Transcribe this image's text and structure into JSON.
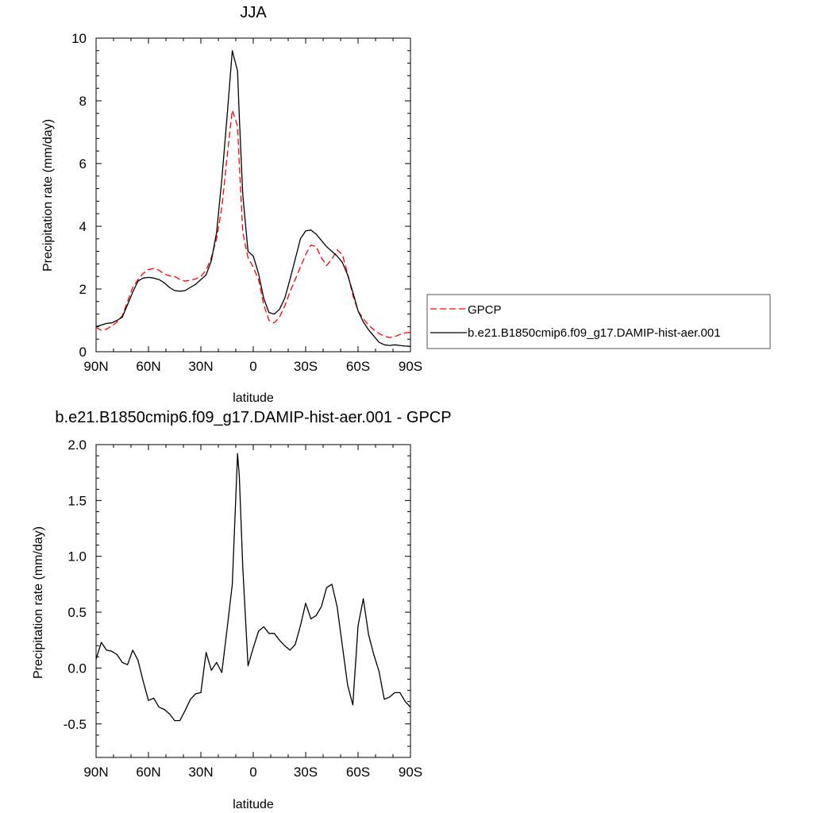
{
  "chart_data": [
    {
      "type": "line",
      "title": "JJA",
      "xlabel": "latitude",
      "ylabel": "Precipitation rate (mm/day)",
      "xlim": [
        90,
        -90
      ],
      "ylim": [
        0,
        10
      ],
      "x_ticks": [
        90,
        60,
        30,
        0,
        -30,
        -60,
        -90
      ],
      "x_tick_labels": [
        "90N",
        "60N",
        "30N",
        "0",
        "30S",
        "60S",
        "90S"
      ],
      "y_ticks": [
        0,
        2,
        4,
        6,
        8,
        10
      ],
      "y_tick_labels": [
        "0",
        "2",
        "4",
        "6",
        "8",
        "10"
      ],
      "grid": false,
      "legend_position": "right",
      "series": [
        {
          "name": "GPCP",
          "color": "#ff0000",
          "dash": "dashed",
          "x": [
            90,
            87,
            84,
            81,
            78,
            75,
            72,
            69,
            66,
            63,
            60,
            57,
            54,
            51,
            48,
            45,
            42,
            39,
            36,
            33,
            30,
            27,
            24,
            21,
            18,
            15,
            12,
            9,
            8,
            6,
            3,
            0,
            -3,
            -6,
            -9,
            -12,
            -15,
            -18,
            -21,
            -24,
            -27,
            -30,
            -33,
            -36,
            -39,
            -42,
            -45,
            -48,
            -51,
            -54,
            -57,
            -60,
            -63,
            -66,
            -69,
            -72,
            -75,
            -78,
            -81,
            -84,
            -87,
            -90
          ],
          "y": [
            0.78,
            0.68,
            0.72,
            0.82,
            0.95,
            1.15,
            1.6,
            2.05,
            2.3,
            2.5,
            2.62,
            2.65,
            2.6,
            2.48,
            2.42,
            2.4,
            2.3,
            2.25,
            2.28,
            2.32,
            2.4,
            2.6,
            3.0,
            3.6,
            4.6,
            6.2,
            7.7,
            7.2,
            6.0,
            3.8,
            3.0,
            2.7,
            2.3,
            1.5,
            1.0,
            0.92,
            1.1,
            1.45,
            1.9,
            2.3,
            2.7,
            3.1,
            3.4,
            3.35,
            3.0,
            2.75,
            2.95,
            3.25,
            3.1,
            2.5,
            1.8,
            1.3,
            1.05,
            0.85,
            0.7,
            0.58,
            0.5,
            0.45,
            0.48,
            0.55,
            0.6,
            0.62
          ]
        },
        {
          "name": "b.e21.B1850cmip6.f09_g17.DAMIP-hist-aer.001",
          "color": "#000000",
          "dash": "solid",
          "x": [
            90,
            87,
            84,
            81,
            78,
            75,
            72,
            69,
            66,
            63,
            60,
            57,
            54,
            51,
            48,
            45,
            42,
            39,
            36,
            33,
            30,
            27,
            24,
            21,
            18,
            15,
            12,
            9,
            8,
            6,
            3,
            0,
            -3,
            -6,
            -9,
            -12,
            -15,
            -18,
            -21,
            -24,
            -27,
            -30,
            -33,
            -36,
            -39,
            -42,
            -45,
            -48,
            -51,
            -54,
            -57,
            -60,
            -63,
            -66,
            -69,
            -72,
            -75,
            -78,
            -81,
            -84,
            -87,
            -90
          ],
          "y": [
            0.8,
            0.85,
            0.9,
            0.92,
            1.0,
            1.1,
            1.5,
            1.9,
            2.25,
            2.35,
            2.37,
            2.35,
            2.3,
            2.2,
            2.05,
            1.95,
            1.93,
            1.95,
            2.05,
            2.15,
            2.3,
            2.45,
            2.9,
            3.8,
            5.5,
            7.5,
            9.6,
            8.95,
            7.5,
            5.0,
            3.2,
            3.05,
            2.5,
            1.7,
            1.25,
            1.2,
            1.35,
            1.7,
            2.3,
            2.95,
            3.6,
            3.85,
            3.88,
            3.75,
            3.55,
            3.35,
            3.2,
            3.05,
            2.85,
            2.45,
            1.9,
            1.3,
            0.95,
            0.7,
            0.5,
            0.3,
            0.22,
            0.2,
            0.22,
            0.2,
            0.18,
            0.17
          ]
        }
      ]
    },
    {
      "type": "line",
      "title": "b.e21.B1850cmip6.f09_g17.DAMIP-hist-aer.001 - GPCP",
      "xlabel": "latitude",
      "ylabel": "Precipitation rate (mm/day)",
      "xlim": [
        90,
        -90
      ],
      "ylim": [
        -0.8,
        2.0
      ],
      "x_ticks": [
        90,
        60,
        30,
        0,
        -30,
        -60,
        -90
      ],
      "x_tick_labels": [
        "90N",
        "60N",
        "30N",
        "0",
        "30S",
        "60S",
        "90S"
      ],
      "y_ticks": [
        -0.5,
        0.0,
        0.5,
        1.0,
        1.5,
        2.0
      ],
      "y_tick_labels": [
        "-0.5",
        "0.0",
        "0.5",
        "1.0",
        "1.5",
        "2.0"
      ],
      "grid": false,
      "series": [
        {
          "color": "#000000",
          "dash": "solid",
          "x": [
            90,
            87,
            84,
            81,
            78,
            75,
            72,
            69,
            66,
            63,
            60,
            57,
            54,
            51,
            48,
            45,
            42,
            39,
            36,
            33,
            30,
            27,
            24,
            21,
            18,
            15,
            12,
            9,
            8,
            6,
            3,
            0,
            -3,
            -6,
            -9,
            -12,
            -15,
            -18,
            -21,
            -24,
            -27,
            -30,
            -33,
            -36,
            -39,
            -42,
            -45,
            -48,
            -51,
            -54,
            -57,
            -60,
            -63,
            -66,
            -69,
            -72,
            -75,
            -78,
            -81,
            -84,
            -87,
            -90
          ],
          "y": [
            0.08,
            0.23,
            0.16,
            0.15,
            0.12,
            0.05,
            0.03,
            0.16,
            0.07,
            -0.12,
            -0.29,
            -0.27,
            -0.35,
            -0.37,
            -0.41,
            -0.47,
            -0.47,
            -0.38,
            -0.28,
            -0.23,
            -0.22,
            0.14,
            -0.02,
            0.05,
            -0.04,
            0.35,
            0.75,
            1.92,
            1.72,
            0.9,
            0.02,
            0.18,
            0.33,
            0.37,
            0.31,
            0.31,
            0.25,
            0.2,
            0.16,
            0.21,
            0.38,
            0.58,
            0.44,
            0.47,
            0.55,
            0.72,
            0.75,
            0.55,
            0.2,
            -0.15,
            -0.33,
            0.38,
            0.62,
            0.3,
            0.12,
            -0.03,
            -0.28,
            -0.26,
            -0.22,
            -0.22,
            -0.3,
            -0.35
          ]
        }
      ]
    }
  ]
}
